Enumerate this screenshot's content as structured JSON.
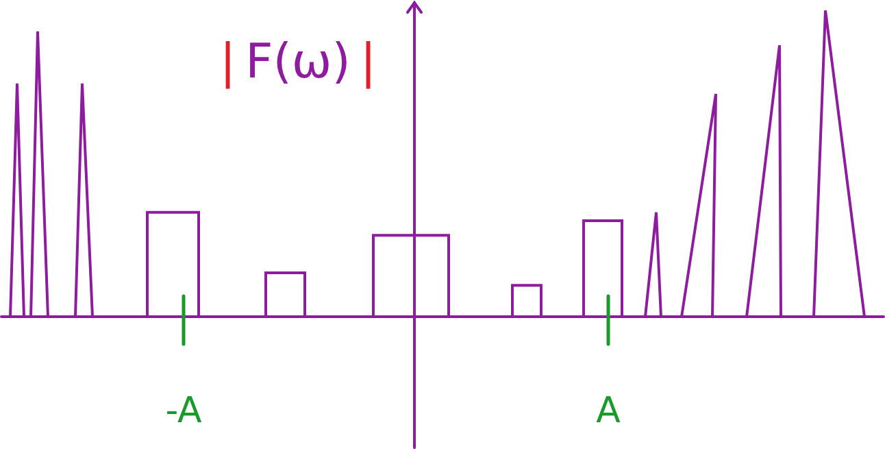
{
  "chart_data": {
    "type": "line",
    "title": "|F(ω)|",
    "x": [
      -5.95,
      -5.9,
      -5.8,
      -5.7,
      -5.6,
      -5.5,
      -5.35,
      -4.95,
      -4.85,
      -4.7,
      -3.9,
      -3.9,
      -3.15,
      -3.15,
      -2.17,
      -2.17,
      -1.6,
      -1.6,
      -0.6,
      -0.6,
      0.5,
      0.5,
      1.43,
      1.43,
      1.85,
      1.85,
      2.47,
      2.47,
      3.03,
      3.03,
      3.37,
      3.53,
      3.6,
      3.9,
      4.4,
      4.35,
      4.85,
      5.33,
      5.35,
      5.83,
      6.0,
      6.57,
      6.8
    ],
    "values": [
      0,
      0,
      3.35,
      0,
      0,
      4.1,
      0,
      0,
      3.35,
      0,
      0,
      1.5,
      1.5,
      0,
      0,
      0.63,
      0.63,
      0,
      0,
      1.17,
      1.17,
      0,
      0,
      0.45,
      0.45,
      0,
      0,
      1.38,
      1.38,
      0,
      0,
      1.5,
      0,
      0,
      3.2,
      0,
      0,
      3.9,
      0,
      0,
      4.4,
      0,
      0
    ],
    "color": "#8e1c9e",
    "xlim": [
      -6.05,
      6.87
    ],
    "ylim": [
      -1.9,
      4.55
    ],
    "tick_labels": false,
    "grid": false,
    "annotations": [
      {
        "text": "-A",
        "x": -3.37,
        "color": "#1a9a2a"
      },
      {
        "text": "A",
        "x": 2.83,
        "color": "#1a9a2a"
      }
    ]
  }
}
